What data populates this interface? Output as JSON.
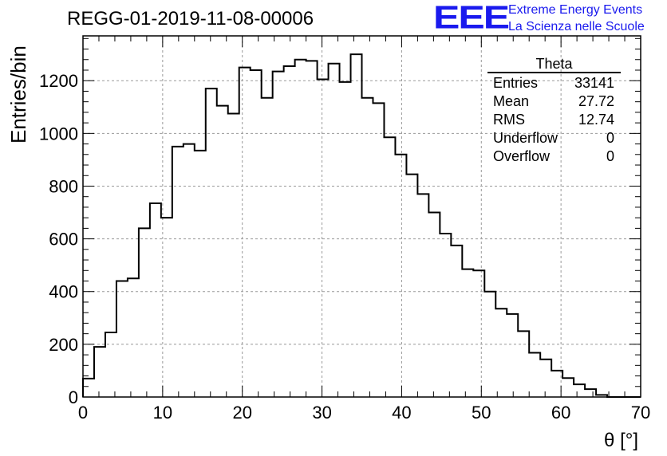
{
  "header": {
    "title": "REGG-01-2019-11-08-00006",
    "logo_text": "EEE",
    "logo_line1": "Extreme Energy Events",
    "logo_line2": "La Scienza nelle Scuole",
    "logo_color": "#1a1aee"
  },
  "stats_box": {
    "name": "Theta",
    "rows": [
      {
        "label": "Entries",
        "value": "33141"
      },
      {
        "label": "Mean",
        "value": "27.72"
      },
      {
        "label": "RMS",
        "value": "12.74"
      },
      {
        "label": "Underflow",
        "value": "0"
      },
      {
        "label": "Overflow",
        "value": "0"
      }
    ]
  },
  "chart_data": {
    "type": "bar",
    "histogram_style": "step",
    "title": "REGG-01-2019-11-08-00006",
    "xlabel": "θ [°]",
    "ylabel": "Entries/bin",
    "xlim": [
      0,
      70
    ],
    "ylim": [
      0,
      1370
    ],
    "bin_width": 1.4,
    "grid": true,
    "x_ticks": [
      0,
      10,
      20,
      30,
      40,
      50,
      60,
      70
    ],
    "y_ticks": [
      0,
      200,
      400,
      600,
      800,
      1000,
      1200
    ],
    "values": [
      70,
      190,
      245,
      440,
      450,
      640,
      735,
      680,
      950,
      960,
      935,
      1170,
      1105,
      1075,
      1250,
      1240,
      1135,
      1235,
      1255,
      1280,
      1275,
      1205,
      1265,
      1195,
      1300,
      1135,
      1115,
      985,
      920,
      845,
      770,
      700,
      620,
      575,
      485,
      480,
      400,
      335,
      315,
      250,
      168,
      143,
      100,
      72,
      48,
      30,
      8,
      0,
      0,
      0
    ],
    "line_color": "#000000"
  }
}
